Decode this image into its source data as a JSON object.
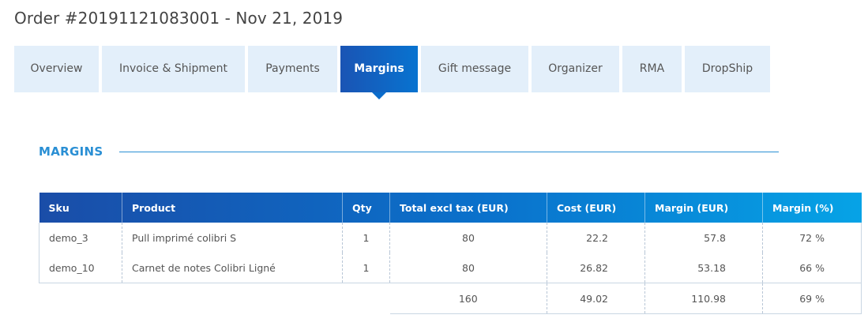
{
  "order": {
    "title": "Order #20191121083001 - Nov 21, 2019"
  },
  "tabs": [
    {
      "label": "Overview",
      "active": false
    },
    {
      "label": "Invoice & Shipment",
      "active": false
    },
    {
      "label": "Payments",
      "active": false
    },
    {
      "label": "Margins",
      "active": true
    },
    {
      "label": "Gift message",
      "active": false
    },
    {
      "label": "Organizer",
      "active": false
    },
    {
      "label": "RMA",
      "active": false
    },
    {
      "label": "DropShip",
      "active": false
    }
  ],
  "section": {
    "title": "MARGINS"
  },
  "table": {
    "headers": [
      "Sku",
      "Product",
      "Qty",
      "Total excl tax (EUR)",
      "Cost (EUR)",
      "Margin (EUR)",
      "Margin (%)"
    ],
    "rows": [
      {
        "sku": "demo_3",
        "product": "Pull imprimé colibri S",
        "qty": "1",
        "total": "80",
        "cost": "22.2",
        "margin": "57.8",
        "margin_pct": "72 %"
      },
      {
        "sku": "demo_10",
        "product": "Carnet de notes Colibri Ligné",
        "qty": "1",
        "total": "80",
        "cost": "26.82",
        "margin": "53.18",
        "margin_pct": "66 %"
      }
    ],
    "totals": {
      "total": "160",
      "cost": "49.02",
      "margin": "110.98",
      "margin_pct": "69 %"
    }
  },
  "colors": {
    "accent": "#2a8fd4",
    "tab_bg": "#e3effa",
    "tab_active_start": "#1a54b4",
    "tab_active_end": "#0873d0"
  }
}
